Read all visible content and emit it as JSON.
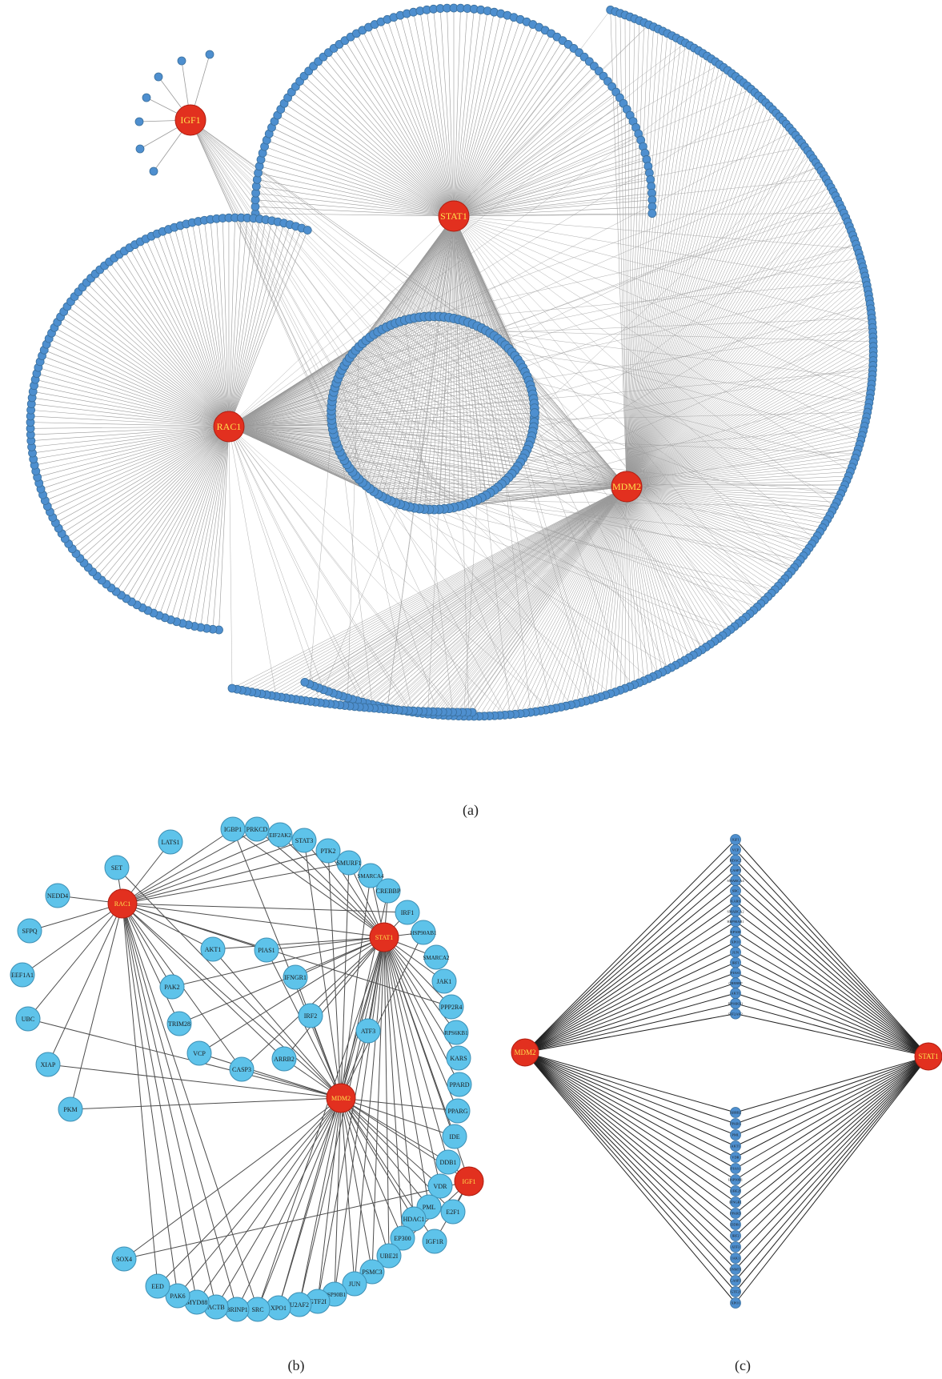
{
  "colors": {
    "hub_fill": "#e2301f",
    "hub_label": "#ffe14d",
    "node_fill_a": "#4e8fcf",
    "node_fill_b": "#5ec3ea",
    "node_stroke": "#3a6f9c",
    "edge_a": "#9a9a9a",
    "edge_b": "#4d4d4d",
    "edge_c": "#222222"
  },
  "captions": {
    "a": "(a)",
    "b": "(b)",
    "c": "(c)"
  },
  "panel_a": {
    "hubs": [
      "IGF1",
      "STAT1",
      "RAC1",
      "MDM2"
    ]
  },
  "panel_b": {
    "hubs": [
      "RAC1",
      "STAT1",
      "MDM2",
      "IGF1"
    ],
    "nodes": [
      "LATS1",
      "SET",
      "NEDD4",
      "SFPQ",
      "EEF1A1",
      "UBC",
      "XIAP",
      "PKM",
      "IGBP1",
      "PRKCD",
      "EIF2AK2",
      "STAT3",
      "PTK2",
      "SMURF1",
      "SMARCA4",
      "CREBBP",
      "IRF1",
      "HSP90AB1",
      "SMARCA2",
      "JAK1",
      "PPP2R4",
      "RPS6KB1",
      "KARS",
      "PPARD",
      "PPARG",
      "IDE",
      "DDB1",
      "VDR",
      "PML",
      "HDAC1",
      "E2F1",
      "IGF1R",
      "EP300",
      "UBE2I",
      "PSMC3",
      "JUN",
      "HSP90B1",
      "GTF2I",
      "U2AF2",
      "XPO1",
      "SRC",
      "BRINP1",
      "ACTB",
      "MYD88",
      "PAK6",
      "EED",
      "SOX4",
      "AKT1",
      "PIAS1",
      "IFNGR1",
      "PAK2",
      "TRIM28",
      "IRF2",
      "ATF3",
      "VCP",
      "CASP3",
      "ARRB2"
    ]
  },
  "panel_c": {
    "hubs": [
      "MDM2",
      "STAT1"
    ],
    "top_nodes": [
      "IGF1",
      "VCP",
      "HDAC2",
      "CASP3",
      "SMARCA4",
      "SRC",
      "KARS",
      "SMARCA2",
      "HSP90AB1",
      "EP300",
      "XPO1",
      "JUN",
      "IRF1",
      "PIAS1",
      "CREBBP",
      "AKT1",
      "RPS6KB1",
      "EIF2AK2"
    ],
    "bottom_nodes": [
      "ARRB2",
      "PPARG",
      "PML",
      "AKT1",
      "VDR",
      "PIAS1",
      "HSP90B1",
      "UBE2I",
      "IFNGR1",
      "PPARD",
      "DDB1",
      "IRF2",
      "ATF3",
      "JAK1",
      "DNMT1",
      "CASP3",
      "GTF2I",
      "XPO1"
    ]
  }
}
